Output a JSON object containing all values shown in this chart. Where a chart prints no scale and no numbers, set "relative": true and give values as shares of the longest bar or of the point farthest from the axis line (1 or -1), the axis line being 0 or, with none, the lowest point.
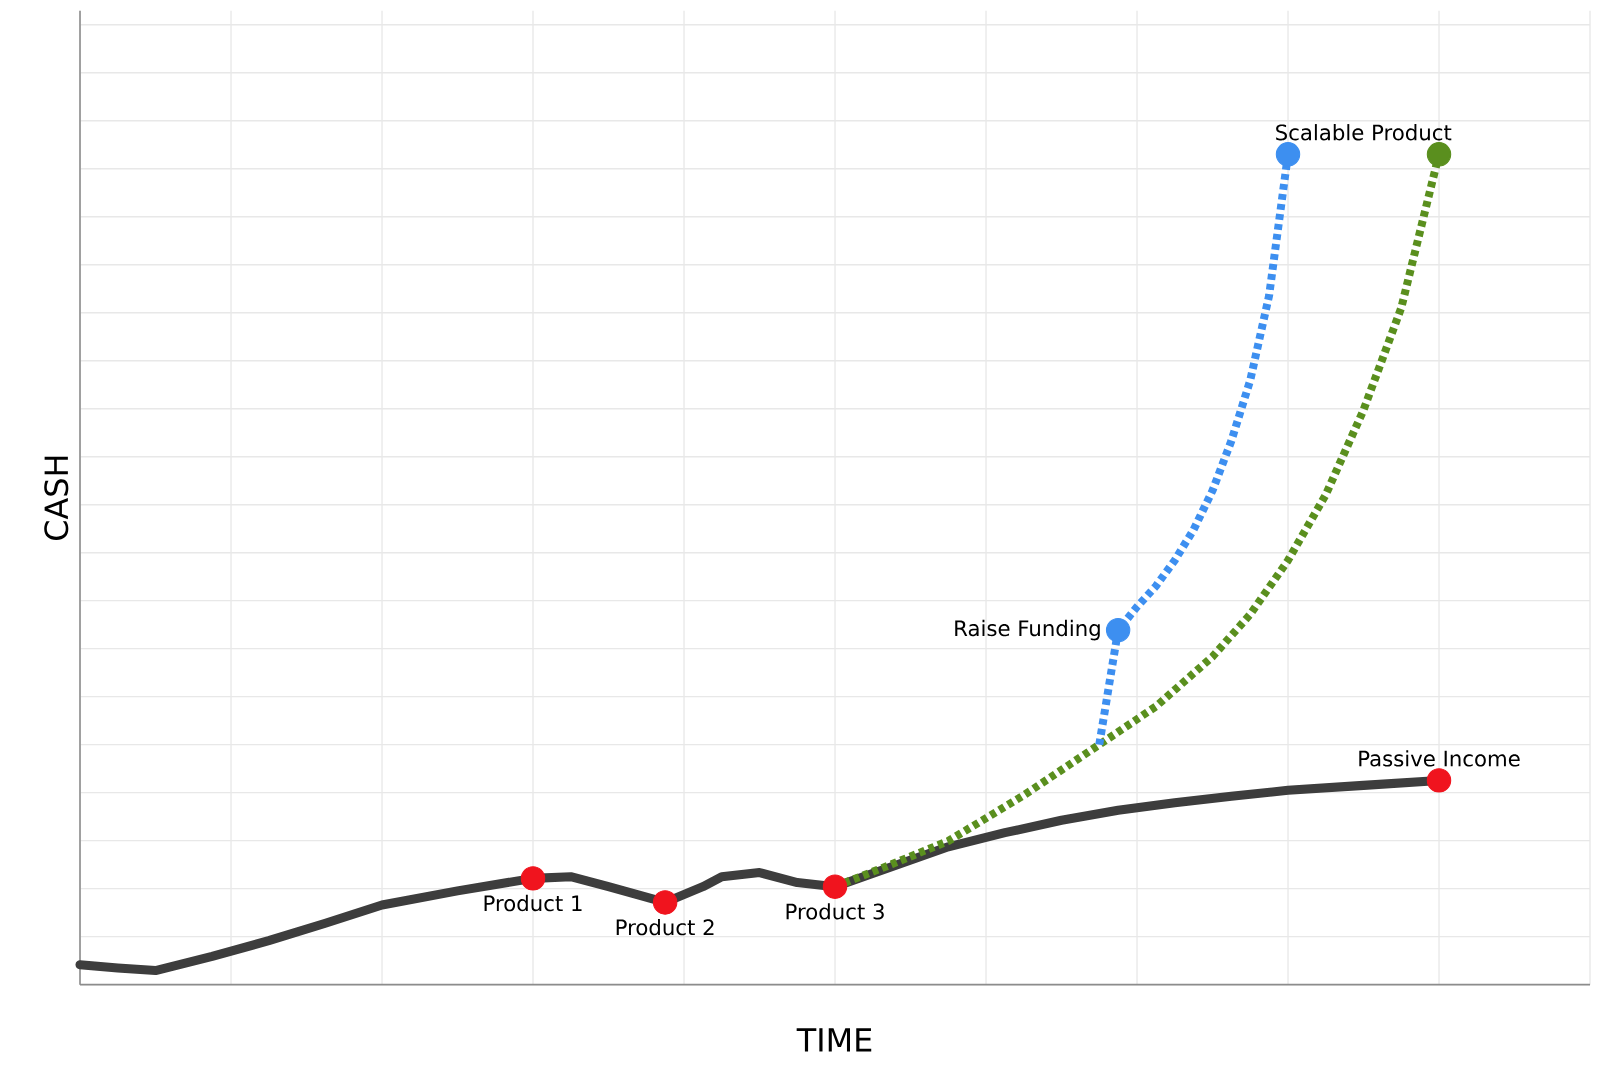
{
  "chart_data": {
    "type": "line",
    "relative": true,
    "xlabel": "TIME",
    "ylabel": "CASH",
    "grid": true,
    "categories": [
      null,
      null,
      null,
      null,
      null,
      null,
      null,
      null,
      null,
      null,
      null,
      null,
      null,
      null,
      null,
      null,
      null,
      null,
      null,
      null,
      null,
      null,
      null,
      null,
      null,
      null,
      null,
      null,
      null,
      null,
      null,
      null,
      null,
      null,
      null,
      null,
      null,
      null,
      null,
      null,
      null,
      null,
      null,
      null,
      null,
      null,
      null,
      null,
      null,
      null,
      null,
      null,
      null,
      null,
      null,
      null,
      null,
      null,
      null,
      null,
      null,
      null,
      null,
      null,
      null,
      null,
      null,
      null,
      null,
      null,
      null,
      null,
      null,
      null,
      null,
      null,
      null,
      null,
      null,
      null,
      null
    ],
    "series": [
      {
        "color": "#3d3d3d",
        "line_style": "solid",
        "values": [
          0.024,
          null,
          0.02,
          null,
          0.017,
          null,
          null,
          0.034,
          null,
          null,
          0.053,
          null,
          null,
          0.074,
          null,
          null,
          0.096,
          null,
          null,
          null,
          0.113,
          null,
          null,
          null,
          0.128,
          null,
          0.13,
          null,
          0.118,
          null,
          null,
          0.099,
          null,
          0.118,
          0.13,
          null,
          0.135,
          null,
          0.123,
          null,
          0.118,
          null,
          null,
          0.142,
          null,
          null,
          0.166,
          null,
          null,
          0.183,
          null,
          null,
          0.198,
          null,
          null,
          0.21,
          null,
          null,
          0.219,
          null,
          null,
          0.227,
          null,
          null,
          0.234,
          null,
          null,
          null,
          0.24,
          null,
          null,
          null,
          0.246,
          null,
          null,
          null,
          null,
          null,
          null,
          null,
          null
        ],
        "colors": [
          null,
          null,
          null,
          null,
          null,
          null,
          null,
          null,
          null,
          null,
          null,
          null,
          null,
          null,
          null,
          null,
          null,
          null,
          null,
          null,
          null,
          null,
          null,
          null,
          "#f0141e",
          null,
          null,
          null,
          null,
          null,
          null,
          "#f0141e",
          null,
          null,
          null,
          null,
          null,
          null,
          null,
          null,
          "#f0141e",
          null,
          null,
          null,
          null,
          null,
          null,
          null,
          null,
          null,
          null,
          null,
          null,
          null,
          null,
          null,
          null,
          null,
          null,
          null,
          null,
          null,
          null,
          null,
          null,
          null,
          null,
          null,
          null,
          null,
          null,
          null,
          "#f0141e",
          null,
          null,
          null,
          null,
          null,
          null,
          null,
          null
        ]
      },
      {
        "color": "#5a8f1e",
        "line_style": "dotted",
        "values": [
          null,
          null,
          null,
          null,
          null,
          null,
          null,
          null,
          null,
          null,
          null,
          null,
          null,
          null,
          null,
          null,
          null,
          null,
          null,
          null,
          null,
          null,
          null,
          null,
          null,
          null,
          null,
          null,
          null,
          null,
          null,
          null,
          null,
          null,
          null,
          null,
          null,
          null,
          null,
          null,
          0.118,
          null,
          null,
          0.145,
          null,
          null,
          0.173,
          null,
          null,
          null,
          0.228,
          null,
          null,
          null,
          0.289,
          null,
          null,
          0.335,
          null,
          null,
          0.395,
          null,
          0.446,
          null,
          0.511,
          null,
          0.59,
          null,
          0.692,
          null,
          0.815,
          null,
          1.0,
          null,
          null,
          null,
          null,
          null,
          null,
          null,
          null
        ],
        "colors": [
          null,
          null,
          null,
          null,
          null,
          null,
          null,
          null,
          null,
          null,
          null,
          null,
          null,
          null,
          null,
          null,
          null,
          null,
          null,
          null,
          null,
          null,
          null,
          null,
          null,
          null,
          null,
          null,
          null,
          null,
          null,
          null,
          null,
          null,
          null,
          null,
          null,
          null,
          null,
          null,
          null,
          null,
          null,
          null,
          null,
          null,
          null,
          null,
          null,
          null,
          null,
          null,
          null,
          null,
          null,
          null,
          null,
          null,
          null,
          null,
          null,
          null,
          null,
          null,
          null,
          null,
          null,
          null,
          null,
          null,
          null,
          null,
          "#5a8f1e",
          null,
          null,
          null,
          null,
          null,
          null,
          null,
          null
        ]
      },
      {
        "color": "#3d8ff0",
        "line_style": "dotted",
        "values": [
          null,
          null,
          null,
          null,
          null,
          null,
          null,
          null,
          null,
          null,
          null,
          null,
          null,
          null,
          null,
          null,
          null,
          null,
          null,
          null,
          null,
          null,
          null,
          null,
          null,
          null,
          null,
          null,
          null,
          null,
          null,
          null,
          null,
          null,
          null,
          null,
          null,
          null,
          null,
          null,
          null,
          null,
          null,
          null,
          null,
          null,
          null,
          null,
          null,
          null,
          null,
          null,
          null,
          null,
          0.289,
          0.427,
          0.455,
          0.48,
          0.511,
          0.548,
          0.595,
          0.655,
          0.728,
          0.83,
          1.0,
          null,
          null,
          null,
          null,
          null,
          null,
          null,
          null,
          null,
          null,
          null,
          null,
          null,
          null,
          null,
          null
        ],
        "colors": [
          null,
          null,
          null,
          null,
          null,
          null,
          null,
          null,
          null,
          null,
          null,
          null,
          null,
          null,
          null,
          null,
          null,
          null,
          null,
          null,
          null,
          null,
          null,
          null,
          null,
          null,
          null,
          null,
          null,
          null,
          null,
          null,
          null,
          null,
          null,
          null,
          null,
          null,
          null,
          null,
          null,
          null,
          null,
          null,
          null,
          null,
          null,
          null,
          null,
          null,
          null,
          null,
          null,
          null,
          null,
          "#3d8ff0",
          null,
          null,
          null,
          null,
          null,
          null,
          null,
          null,
          "#3d8ff0",
          null,
          null,
          null,
          null,
          null,
          null,
          null,
          null,
          null,
          null,
          null,
          null,
          null,
          null,
          null,
          null
        ]
      }
    ],
    "annotations": [
      {
        "text": "Product 1",
        "y": 0.128
      },
      {
        "text": "Product 2",
        "y": 0.099
      },
      {
        "text": "Product 3",
        "y": 0.118
      },
      {
        "text": "Passive Income",
        "y": 0.246
      },
      "Raise Funding",
      "Scalable Product"
    ]
  }
}
